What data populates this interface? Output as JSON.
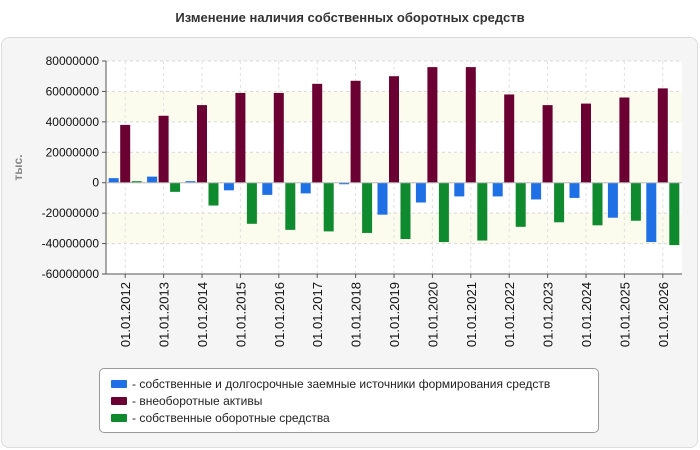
{
  "chart_data": {
    "type": "bar",
    "title": "Изменение наличия собственных оборотных средств",
    "ylabel": "тыс.",
    "xlabel": "",
    "ylim": [
      -60000000,
      80000000
    ],
    "yticks": [
      80000000,
      60000000,
      40000000,
      20000000,
      0,
      -20000000,
      -40000000,
      -60000000
    ],
    "ytick_labels": [
      "80000000",
      "60000000",
      "40000000",
      "20000000",
      "0",
      "-20000000",
      "-40000000",
      "-60000000"
    ],
    "categories": [
      "01.01.2012",
      "01.01.2013",
      "01.01.2014",
      "01.01.2015",
      "01.01.2016",
      "01.01.2017",
      "01.01.2018",
      "01.01.2019",
      "01.01.2020",
      "01.01.2021",
      "01.01.2022",
      "01.01.2023",
      "01.01.2024",
      "01.01.2025",
      "01.01.2026"
    ],
    "series": [
      {
        "name": "- собственные и долгосрочные заемные источники формирования средств",
        "color": "#1f6fe5",
        "values": [
          3000000,
          4000000,
          1000000,
          -5000000,
          -8000000,
          -7000000,
          -1000000,
          -21000000,
          -13000000,
          -9000000,
          -9000000,
          -11000000,
          -10000000,
          -23000000,
          -39000000
        ]
      },
      {
        "name": "- внеоборотные активы",
        "color": "#6b0033",
        "values": [
          38000000,
          44000000,
          51000000,
          59000000,
          59000000,
          65000000,
          67000000,
          70000000,
          76000000,
          76000000,
          58000000,
          51000000,
          52000000,
          56000000,
          62000000
        ]
      },
      {
        "name": "- собственные оборотные средства",
        "color": "#0f8a2e",
        "values": [
          1000000,
          -6000000,
          -15000000,
          -27000000,
          -31000000,
          -32000000,
          -33000000,
          -37000000,
          -39000000,
          -38000000,
          -29000000,
          -26000000,
          -28000000,
          -25000000,
          -41000000
        ]
      }
    ],
    "grid": true,
    "legend_position": "bottom"
  }
}
